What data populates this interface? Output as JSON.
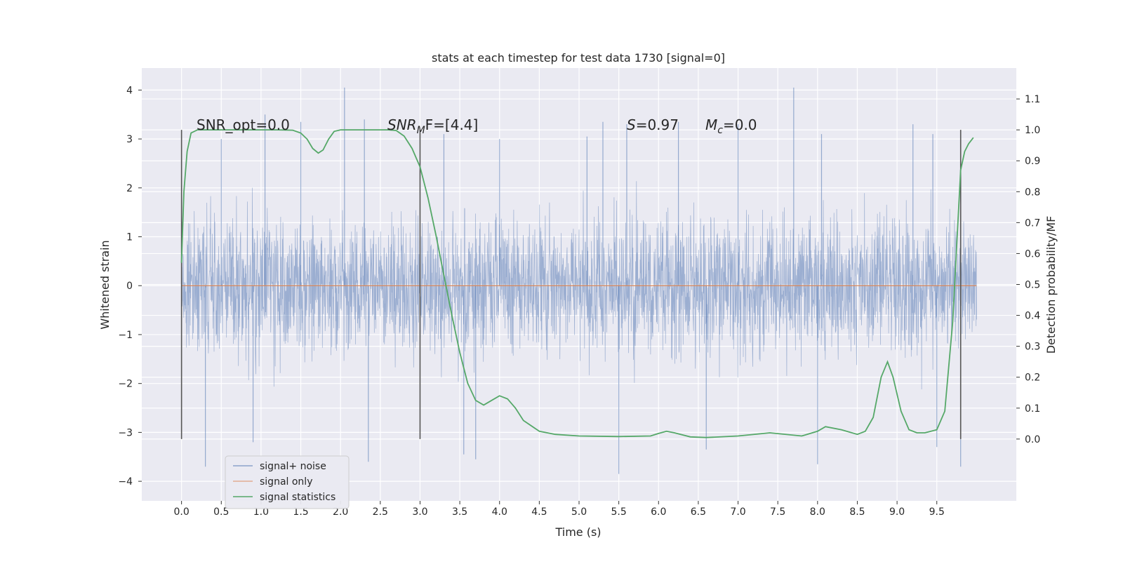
{
  "chart_data": {
    "type": "line",
    "title": "stats at each timestep for test data 1730 [signal=0]",
    "xlabel": "Time (s)",
    "ylabel_left": "Whitened strain",
    "ylabel_right": "Detection probability/MF",
    "xlim": [
      -0.5,
      10.5
    ],
    "ylim_left": [
      -4.4,
      4.45
    ],
    "ylim_right": [
      -0.2,
      1.2
    ],
    "x_ticks": [
      "0.0",
      "0.5",
      "1.0",
      "1.5",
      "2.0",
      "2.5",
      "3.0",
      "3.5",
      "4.0",
      "4.5",
      "5.0",
      "5.5",
      "6.0",
      "6.5",
      "7.0",
      "7.5",
      "8.0",
      "8.5",
      "9.0",
      "9.5"
    ],
    "y_left_ticks": [
      "−4",
      "−3",
      "−2",
      "−1",
      "0",
      "1",
      "2",
      "3",
      "4"
    ],
    "y_right_ticks": [
      "0.0",
      "0.1",
      "0.2",
      "0.3",
      "0.4",
      "0.5",
      "0.6",
      "0.7",
      "0.8",
      "0.9",
      "1.0",
      "1.1"
    ],
    "grid": true,
    "legend_position": "lower-left",
    "colors": {
      "plot_background": "#eaeaf2",
      "noise": "#4c72b0",
      "signal_only": "#dd8452",
      "statistics": "#55a868",
      "marker_lines": "#555555",
      "grid": "#ffffff"
    },
    "annotations": {
      "snr_opt": "SNR_opt=0.0",
      "snr_mf_base": "SNR",
      "snr_mf_sub": "M",
      "snr_mf_rest": "F=[4.4]",
      "s_var": "S",
      "s_rest": "=0.97",
      "mc_base": "M",
      "mc_sub": "c",
      "mc_rest": "=0.0"
    },
    "vertical_markers_x": [
      0.0,
      3.0,
      9.8
    ],
    "series": [
      {
        "name": "signal+ noise",
        "axis": "left",
        "style": "dense-noise",
        "x_range": [
          0.0,
          10.0
        ],
        "typical_amplitude": [
          -1.75,
          1.9
        ],
        "envelope": [
          -3.85,
          4.05
        ],
        "peak_spikes": [
          {
            "x": 0.0,
            "y": 2.05
          },
          {
            "x": 0.5,
            "y": 3.0
          },
          {
            "x": 1.05,
            "y": 3.5
          },
          {
            "x": 1.5,
            "y": 3.35
          },
          {
            "x": 2.05,
            "y": 4.05
          },
          {
            "x": 2.3,
            "y": 3.4
          },
          {
            "x": 3.3,
            "y": 3.1
          },
          {
            "x": 4.0,
            "y": 3.0
          },
          {
            "x": 5.1,
            "y": 3.05
          },
          {
            "x": 5.3,
            "y": 3.35
          },
          {
            "x": 5.6,
            "y": 3.3
          },
          {
            "x": 6.25,
            "y": 3.35
          },
          {
            "x": 7.0,
            "y": 3.3
          },
          {
            "x": 7.7,
            "y": 4.05
          },
          {
            "x": 8.05,
            "y": 3.1
          },
          {
            "x": 9.2,
            "y": 3.3
          },
          {
            "x": 9.45,
            "y": 3.1
          },
          {
            "x": 0.3,
            "y": -3.7
          },
          {
            "x": 0.9,
            "y": -3.2
          },
          {
            "x": 2.35,
            "y": -3.6
          },
          {
            "x": 3.55,
            "y": -3.45
          },
          {
            "x": 3.7,
            "y": -3.55
          },
          {
            "x": 5.5,
            "y": -3.85
          },
          {
            "x": 6.6,
            "y": -3.35
          },
          {
            "x": 8.0,
            "y": -3.65
          },
          {
            "x": 9.5,
            "y": -3.3
          },
          {
            "x": 9.8,
            "y": -3.7
          }
        ]
      },
      {
        "name": "signal only",
        "axis": "left",
        "x": [
          0.0,
          10.0
        ],
        "values": [
          0.0,
          0.0
        ]
      },
      {
        "name": "signal statistics",
        "axis": "right",
        "x": [
          0.0,
          0.03,
          0.07,
          0.12,
          0.2,
          0.35,
          0.5,
          0.8,
          1.0,
          1.2,
          1.4,
          1.5,
          1.58,
          1.65,
          1.72,
          1.78,
          1.85,
          1.92,
          2.0,
          2.1,
          2.3,
          2.6,
          2.7,
          2.8,
          2.9,
          3.0,
          3.1,
          3.2,
          3.3,
          3.4,
          3.5,
          3.6,
          3.7,
          3.8,
          3.9,
          4.0,
          4.1,
          4.2,
          4.3,
          4.5,
          4.7,
          5.0,
          5.5,
          5.9,
          6.0,
          6.1,
          6.2,
          6.4,
          6.6,
          7.0,
          7.4,
          7.8,
          8.0,
          8.1,
          8.3,
          8.5,
          8.6,
          8.7,
          8.8,
          8.88,
          8.95,
          9.05,
          9.15,
          9.25,
          9.35,
          9.5,
          9.6,
          9.7,
          9.8,
          9.85,
          9.9,
          9.96
        ],
        "values": [
          0.57,
          0.8,
          0.93,
          0.99,
          1.0,
          1.0,
          1.0,
          1.0,
          1.0,
          1.0,
          0.999,
          0.99,
          0.97,
          0.94,
          0.925,
          0.935,
          0.97,
          0.995,
          1.0,
          1.0,
          1.0,
          1.0,
          0.998,
          0.98,
          0.94,
          0.88,
          0.78,
          0.66,
          0.53,
          0.4,
          0.28,
          0.18,
          0.125,
          0.11,
          0.125,
          0.14,
          0.13,
          0.1,
          0.06,
          0.025,
          0.015,
          0.01,
          0.008,
          0.01,
          0.018,
          0.025,
          0.02,
          0.007,
          0.005,
          0.01,
          0.02,
          0.01,
          0.025,
          0.04,
          0.03,
          0.015,
          0.025,
          0.07,
          0.2,
          0.25,
          0.2,
          0.09,
          0.03,
          0.02,
          0.02,
          0.03,
          0.09,
          0.38,
          0.87,
          0.93,
          0.955,
          0.975
        ]
      }
    ]
  }
}
